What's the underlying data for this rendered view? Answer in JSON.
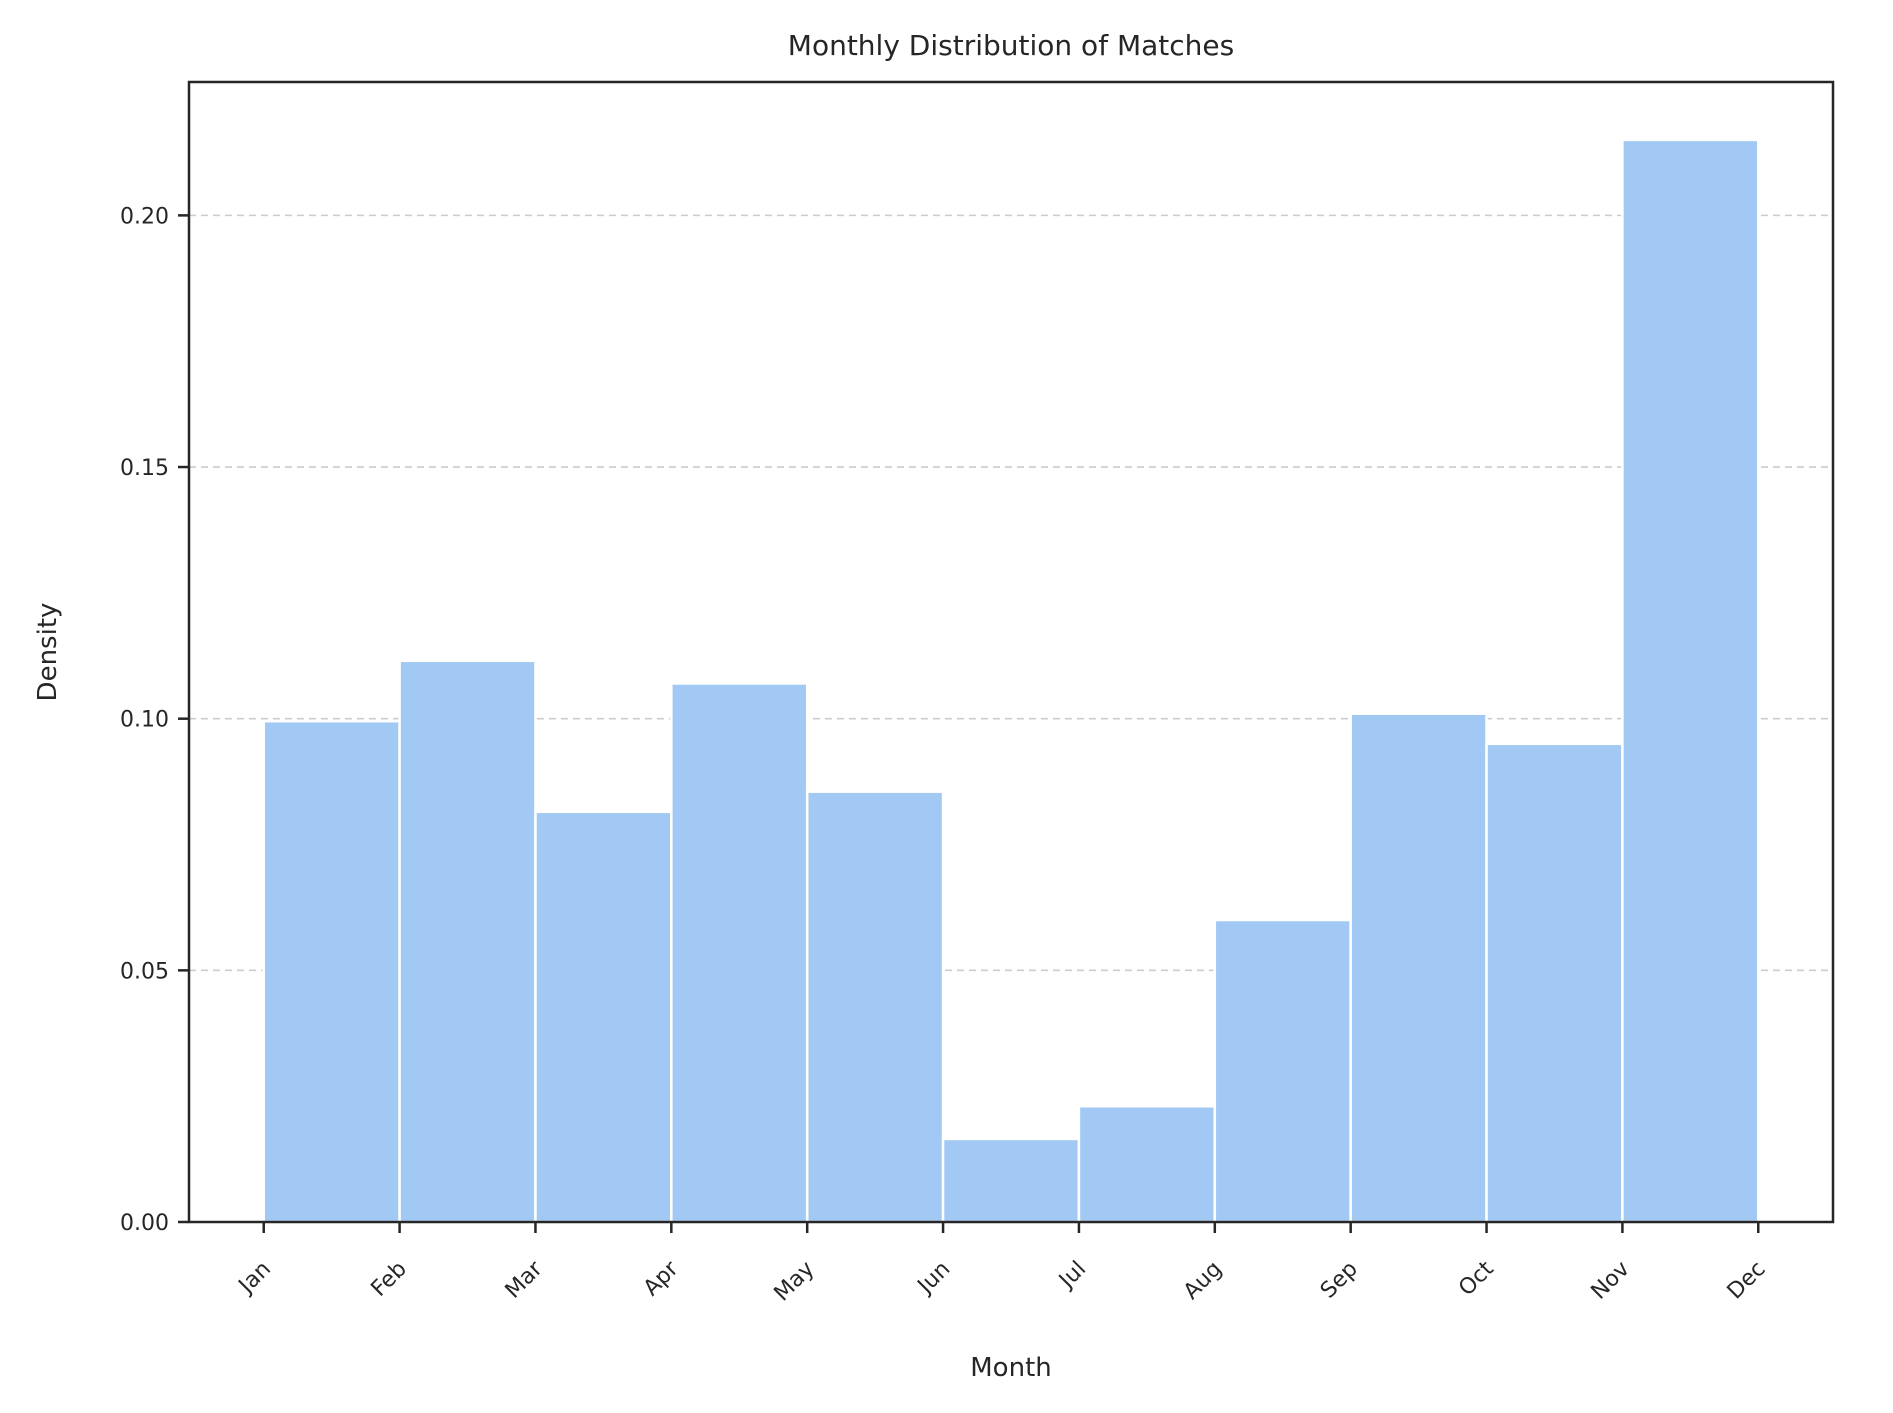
{
  "chart_data": {
    "type": "bar",
    "title": "Monthly Distribution of Matches",
    "xlabel": "Month",
    "ylabel": "Density",
    "tick_labels": [
      "Jan",
      "Feb",
      "Mar",
      "Apr",
      "May",
      "Jun",
      "Jul",
      "Aug",
      "Sep",
      "Oct",
      "Nov",
      "Dec"
    ],
    "bins": [
      {
        "start": 1,
        "end": 2,
        "value": 0.0995
      },
      {
        "start": 2,
        "end": 3,
        "value": 0.1115
      },
      {
        "start": 3,
        "end": 4,
        "value": 0.0815
      },
      {
        "start": 4,
        "end": 5,
        "value": 0.107
      },
      {
        "start": 5,
        "end": 6,
        "value": 0.0855
      },
      {
        "start": 6,
        "end": 7,
        "value": 0.0165
      },
      {
        "start": 7,
        "end": 8,
        "value": 0.023
      },
      {
        "start": 8,
        "end": 9,
        "value": 0.06
      },
      {
        "start": 9,
        "end": 10,
        "value": 0.101
      },
      {
        "start": 10,
        "end": 11,
        "value": 0.095
      },
      {
        "start": 11,
        "end": 12,
        "value": 0.215
      }
    ],
    "yticks": [
      "0.00",
      "0.05",
      "0.10",
      "0.15",
      "0.20"
    ],
    "ylim": [
      0,
      0.2265
    ],
    "xlim": [
      0.45,
      12.55
    ],
    "grid": "y-dashed",
    "bar_color": "#a1c9f4"
  }
}
